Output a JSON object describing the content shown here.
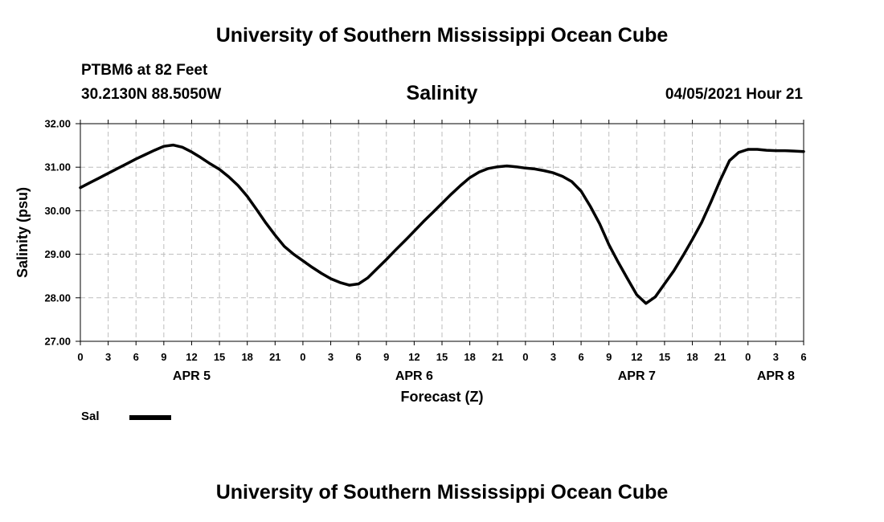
{
  "header": {
    "title": "University of Southern Mississippi Ocean Cube",
    "station": "PTBM6 at 82 Feet",
    "coordinates": "30.2130N  88.5050W",
    "datetime": "04/05/2021 Hour 21"
  },
  "footer": {
    "title": "University of Southern Mississippi Ocean Cube"
  },
  "legend": {
    "label": "Sal",
    "color": "#000000"
  },
  "chart_data": {
    "type": "line",
    "title": "Salinity",
    "xlabel": "Forecast (Z)",
    "ylabel": "Salinity (psu)",
    "ylim": [
      27.0,
      32.0
    ],
    "xlim_hours": [
      0,
      78
    ],
    "grid": true,
    "y_ticks": [
      "27.00",
      "28.00",
      "29.00",
      "30.00",
      "31.00",
      "32.00"
    ],
    "x_ticks": [
      "0",
      "3",
      "6",
      "9",
      "12",
      "15",
      "18",
      "21",
      "0",
      "3",
      "6",
      "9",
      "12",
      "15",
      "18",
      "21",
      "0",
      "3",
      "6",
      "9",
      "12",
      "15",
      "18",
      "21",
      "0",
      "3",
      "6"
    ],
    "day_labels": [
      {
        "label": "APR 5",
        "hour": 12
      },
      {
        "label": "APR 6",
        "hour": 36
      },
      {
        "label": "APR 7",
        "hour": 60
      },
      {
        "label": "APR 8",
        "hour": 75
      }
    ],
    "series": [
      {
        "name": "Sal",
        "color": "#000000",
        "x_hours": [
          0,
          1,
          2,
          3,
          4,
          5,
          6,
          7,
          8,
          9,
          10,
          11,
          12,
          13,
          14,
          15,
          16,
          17,
          18,
          19,
          20,
          21,
          22,
          23,
          24,
          25,
          26,
          27,
          28,
          29,
          30,
          31,
          32,
          33,
          34,
          35,
          36,
          37,
          38,
          39,
          40,
          41,
          42,
          43,
          44,
          45,
          46,
          47,
          48,
          49,
          50,
          51,
          52,
          53,
          54,
          55,
          56,
          57,
          58,
          59,
          60,
          61,
          62,
          63,
          64,
          65,
          66,
          67,
          68,
          69,
          70,
          71,
          72,
          73,
          74,
          75,
          76,
          77,
          78
        ],
        "values": [
          30.53,
          30.64,
          30.75,
          30.86,
          30.97,
          31.08,
          31.19,
          31.29,
          31.39,
          31.48,
          31.51,
          31.46,
          31.35,
          31.22,
          31.08,
          30.95,
          30.78,
          30.58,
          30.33,
          30.03,
          29.72,
          29.44,
          29.18,
          29.0,
          28.85,
          28.7,
          28.56,
          28.44,
          28.35,
          28.29,
          28.32,
          28.46,
          28.67,
          28.88,
          29.1,
          29.31,
          29.53,
          29.75,
          29.96,
          30.17,
          30.38,
          30.58,
          30.76,
          30.89,
          30.97,
          31.01,
          31.03,
          31.01,
          30.98,
          30.96,
          30.92,
          30.87,
          30.79,
          30.67,
          30.45,
          30.1,
          29.7,
          29.22,
          28.82,
          28.44,
          28.07,
          27.87,
          28.02,
          28.32,
          28.62,
          28.97,
          29.34,
          29.73,
          30.2,
          30.7,
          31.15,
          31.34,
          31.41,
          31.41,
          31.39,
          31.38,
          31.38,
          31.37,
          31.36
        ]
      }
    ]
  }
}
